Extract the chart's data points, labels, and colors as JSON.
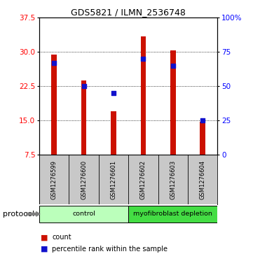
{
  "title": "GDS5821 / ILMN_2536748",
  "samples": [
    "GSM1276599",
    "GSM1276600",
    "GSM1276601",
    "GSM1276602",
    "GSM1276603",
    "GSM1276604"
  ],
  "bar_values": [
    29.5,
    23.8,
    17.0,
    33.5,
    30.3,
    14.8
  ],
  "percentile_right": [
    67,
    50,
    45,
    70,
    65,
    25
  ],
  "ylim_left": [
    7.5,
    37.5
  ],
  "ylim_right": [
    0,
    100
  ],
  "yticks_left": [
    7.5,
    15.0,
    22.5,
    30.0,
    37.5
  ],
  "yticks_right": [
    0,
    25,
    50,
    75,
    100
  ],
  "ytick_labels_right": [
    "0",
    "25",
    "50",
    "75",
    "100%"
  ],
  "bar_color": "#cc1100",
  "dot_color": "#1111cc",
  "groups": [
    {
      "label": "control",
      "indices": [
        0,
        1,
        2
      ],
      "color": "#bbffbb"
    },
    {
      "label": "myofibroblast depletion",
      "indices": [
        3,
        4,
        5
      ],
      "color": "#44dd44"
    }
  ],
  "legend_items": [
    "count",
    "percentile rank within the sample"
  ],
  "protocol_label": "protocol",
  "label_area_bg": "#c8c8c8",
  "bar_width": 0.18
}
